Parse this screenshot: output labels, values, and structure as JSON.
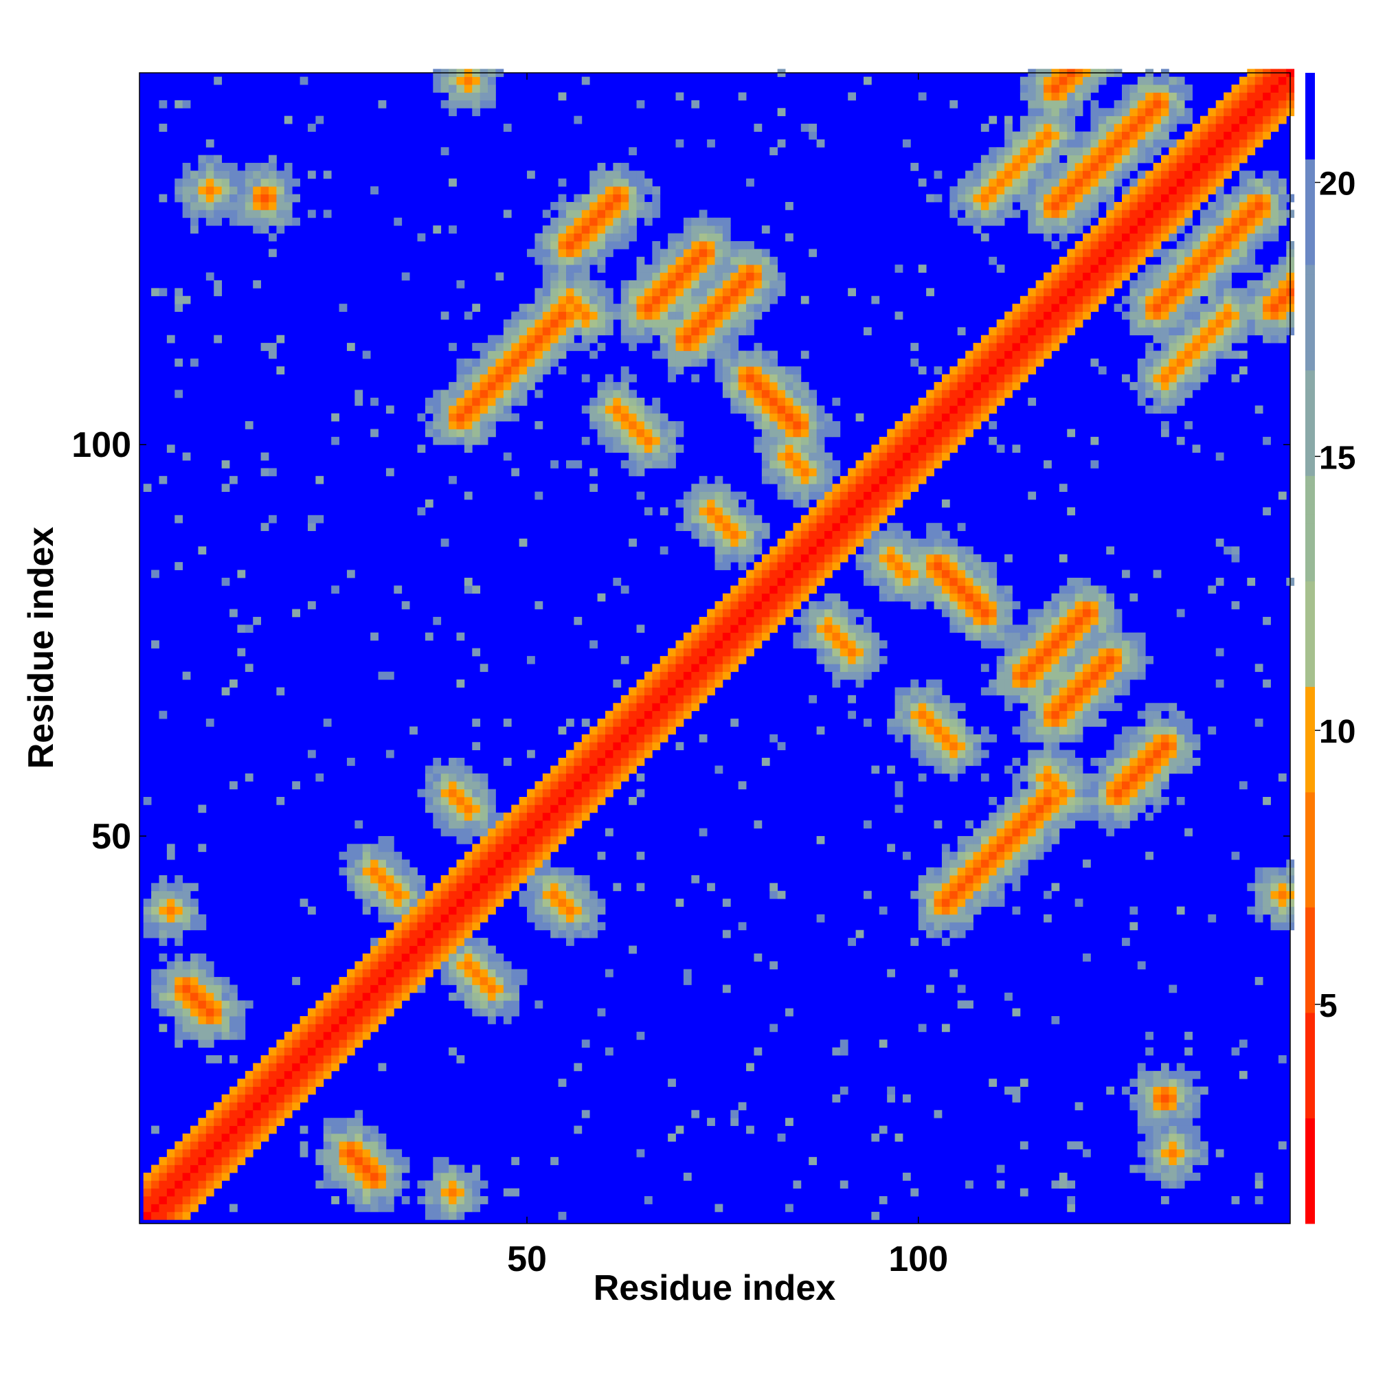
{
  "chart_data": {
    "type": "heatmap",
    "title": "",
    "xlabel": "Residue index",
    "ylabel": "Residue index",
    "n_residues": 147,
    "xlim": [
      1,
      147
    ],
    "ylim": [
      1,
      147
    ],
    "x_ticks": [
      "50",
      "100"
    ],
    "x_tick_values": [
      50,
      100
    ],
    "y_ticks": [
      "50",
      "100"
    ],
    "y_tick_values": [
      50,
      100
    ],
    "colorbar": {
      "ticks": [
        "5",
        "10",
        "15",
        "20"
      ],
      "tick_values": [
        5,
        10,
        15,
        20
      ],
      "range": [
        1,
        22
      ],
      "colors": [
        "#ff0000",
        "#ff2a00",
        "#ff5200",
        "#ff7a00",
        "#ffa000",
        "#a6c08e",
        "#99b997",
        "#8aa9a8",
        "#7b99b8",
        "#6a88c4",
        "#0000ff"
      ]
    },
    "diagonal_band": {
      "width": 3.5,
      "value_at_center": 1
    },
    "contact_segments": [
      {
        "kind": "antiparallel",
        "i": 6,
        "j": 30,
        "length": 4,
        "value": 6
      },
      {
        "kind": "antiparallel",
        "i": 30,
        "j": 45,
        "length": 4,
        "value": 7
      },
      {
        "kind": "antiparallel",
        "i": 40,
        "j": 55,
        "length": 3,
        "value": 7
      },
      {
        "kind": "antiparallel",
        "i": 61,
        "j": 104,
        "length": 5,
        "value": 7
      },
      {
        "kind": "antiparallel",
        "i": 73,
        "j": 91,
        "length": 4,
        "value": 7
      },
      {
        "kind": "antiparallel",
        "i": 83,
        "j": 98,
        "length": 3,
        "value": 7
      },
      {
        "kind": "antiparallel",
        "i": 78,
        "j": 108,
        "length": 7,
        "value": 6
      },
      {
        "kind": "antiparallel",
        "i": 55,
        "j": 118,
        "length": 3,
        "value": 7
      },
      {
        "kind": "parallel",
        "i": 41,
        "j": 103,
        "length": 14,
        "value": 6
      },
      {
        "kind": "parallel",
        "i": 70,
        "j": 113,
        "length": 9,
        "value": 6
      },
      {
        "kind": "parallel",
        "i": 55,
        "j": 125,
        "length": 7,
        "value": 6
      },
      {
        "kind": "parallel",
        "i": 108,
        "j": 131,
        "length": 9,
        "value": 7
      },
      {
        "kind": "parallel",
        "i": 65,
        "j": 117,
        "length": 8,
        "value": 6
      },
      {
        "kind": "parallel",
        "i": 117,
        "j": 130,
        "length": 14,
        "value": 6
      },
      {
        "kind": "parallel",
        "i": 117,
        "j": 145,
        "length": 8,
        "value": 6
      },
      {
        "kind": "point",
        "i": 9,
        "j": 132,
        "value": 7
      },
      {
        "kind": "point",
        "i": 42,
        "j": 146,
        "value": 7
      },
      {
        "kind": "point",
        "i": 40,
        "j": 4,
        "value": 7
      },
      {
        "kind": "point",
        "i": 131,
        "j": 16,
        "value": 6
      }
    ]
  }
}
